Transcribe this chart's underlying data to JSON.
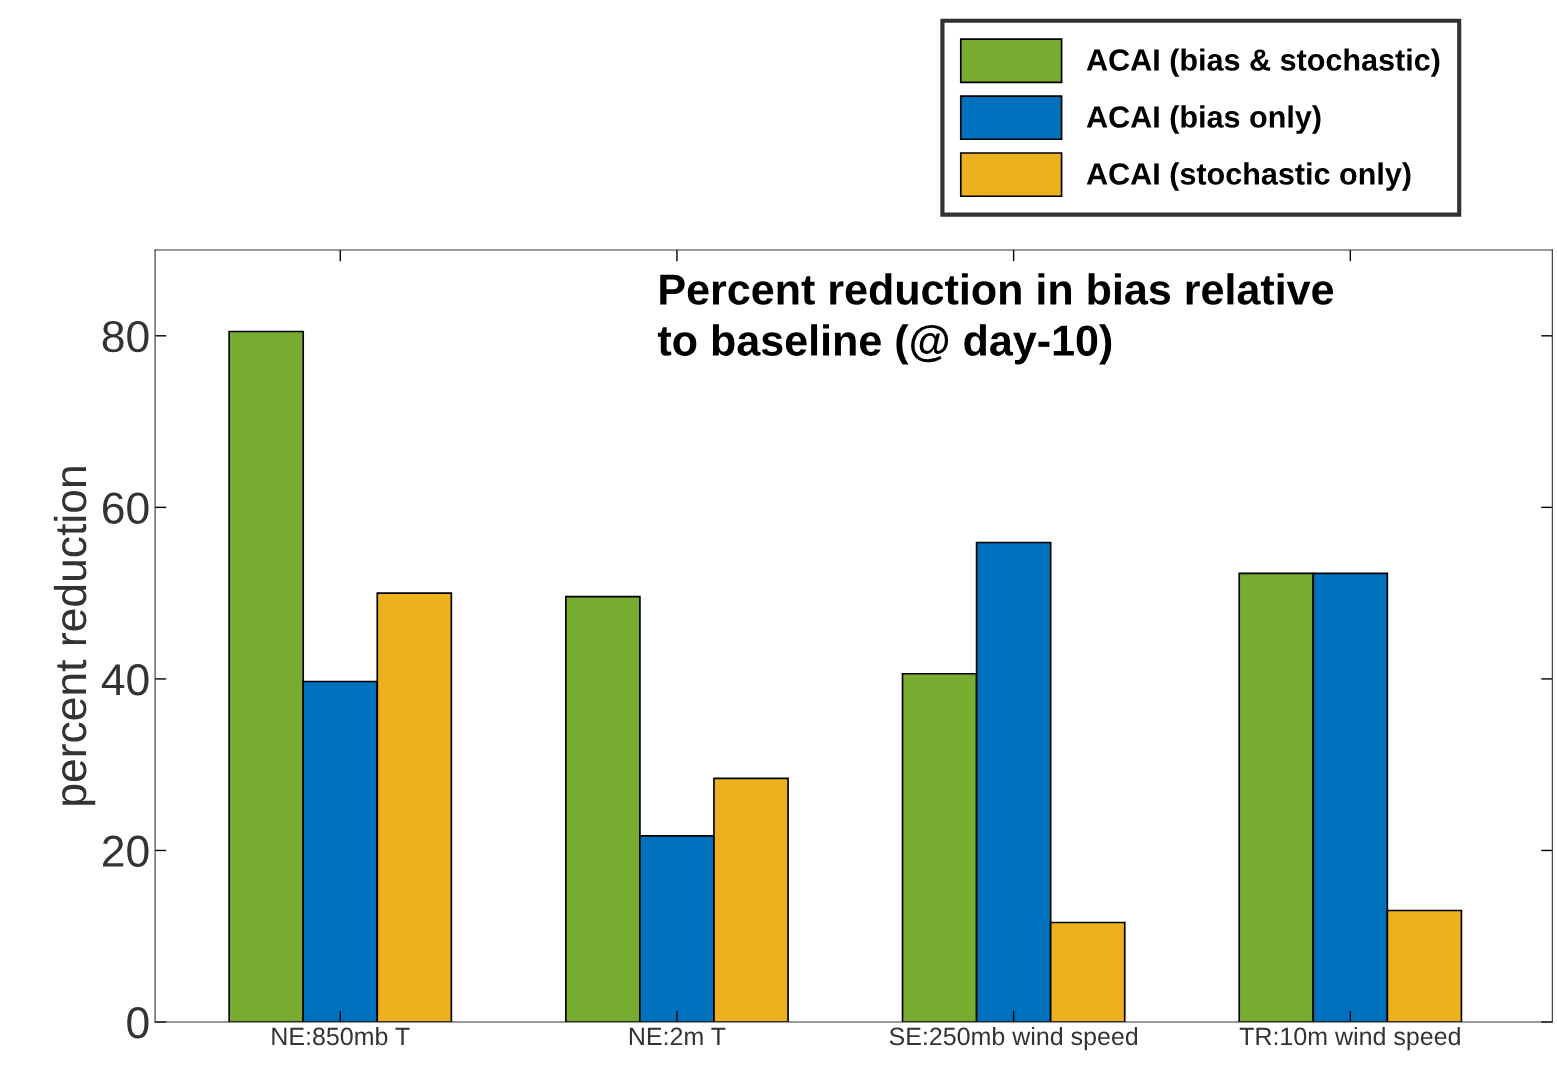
{
  "chart_data": {
    "type": "bar",
    "title": "Percent reduction in bias relative\nto baseline (@ day-10)",
    "ylabel": "percent reduction",
    "categories": [
      "NE:850mb T",
      "NE:2m T",
      "SE:250mb wind speed",
      "TR:10m wind speed"
    ],
    "series": [
      {
        "name": "ACAI (bias & stochastic)",
        "color": "#77ac30",
        "values": [
          80.5,
          49.6,
          40.6,
          52.3
        ]
      },
      {
        "name": "ACAI (bias only)",
        "color": "#0072bd",
        "values": [
          39.7,
          21.7,
          55.9,
          52.3
        ]
      },
      {
        "name": "ACAI (stochastic only)",
        "color": "#edb120",
        "values": [
          50.0,
          28.4,
          11.6,
          13.0
        ]
      }
    ],
    "ylim": [
      0,
      90
    ],
    "yticks": [
      0,
      20,
      40,
      60,
      80
    ],
    "grid": false,
    "legend": "top right"
  }
}
